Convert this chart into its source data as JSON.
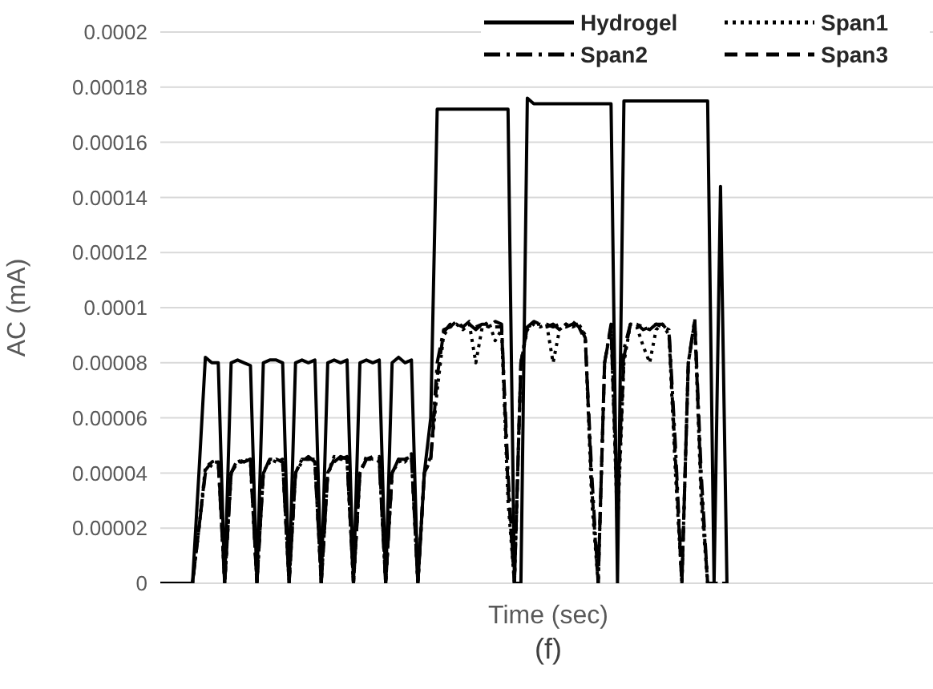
{
  "chart_data": {
    "type": "line",
    "xlabel": "Time (sec)",
    "ylabel": "AC (mA)",
    "annotations": [
      "(f)"
    ],
    "categories": [
      null,
      null,
      null,
      null,
      null,
      null,
      null,
      null,
      null,
      null,
      null,
      null,
      null,
      null,
      null,
      null,
      null,
      null,
      null,
      null,
      null,
      null,
      null,
      null,
      null,
      null,
      null,
      null,
      null,
      null,
      null,
      null,
      null,
      null,
      null,
      null,
      null,
      null,
      null,
      null,
      null,
      null,
      null,
      null,
      null,
      null,
      null,
      null,
      null,
      null,
      null,
      null,
      null,
      null,
      null,
      null,
      null,
      null,
      null,
      null,
      null,
      null,
      null,
      null,
      null,
      null,
      null,
      null,
      null,
      null,
      null,
      null,
      null,
      null,
      null,
      null,
      null,
      null,
      null,
      null,
      null,
      null,
      null,
      null,
      null,
      null,
      null,
      null,
      null,
      null,
      null,
      null,
      null,
      null,
      null,
      null,
      null,
      null,
      null,
      null,
      null,
      null,
      null,
      null,
      null,
      null,
      null,
      null,
      null,
      null,
      null,
      null,
      null,
      null,
      null,
      null,
      null,
      null,
      null,
      null,
      null
    ],
    "series": [
      {
        "name": "Hydrogel",
        "color": "#000000",
        "line_style": "solid",
        "values": [
          0,
          0,
          0,
          0,
          0,
          0,
          4e-05,
          8.2e-05,
          8e-05,
          8e-05,
          0,
          8e-05,
          8.1e-05,
          8e-05,
          7.9e-05,
          0,
          8e-05,
          8.1e-05,
          8.1e-05,
          8e-05,
          0,
          8e-05,
          8.1e-05,
          8e-05,
          8.1e-05,
          0,
          8e-05,
          8.1e-05,
          8e-05,
          8.1e-05,
          0,
          8e-05,
          8.1e-05,
          8e-05,
          8.1e-05,
          0,
          8e-05,
          8.2e-05,
          8e-05,
          8.1e-05,
          0,
          4e-05,
          6e-05,
          0.000172,
          0.000172,
          0.000172,
          0.000172,
          0.000172,
          0.000172,
          0.000172,
          0.000172,
          0.000172,
          0.000172,
          0.000172,
          0.000172,
          0,
          0,
          0.000176,
          0.000174,
          0.000174,
          0.000174,
          0.000174,
          0.000174,
          0.000174,
          0.000174,
          0.000174,
          0.000174,
          0.000174,
          0.000174,
          0.000174,
          0.000174,
          0,
          0.000175,
          0.000175,
          0.000175,
          0.000175,
          0.000175,
          0.000175,
          0.000175,
          0.000175,
          0.000175,
          0.000175,
          0.000175,
          0.000175,
          0.000175,
          0.000175,
          0,
          0.000144,
          0,
          null,
          null,
          null,
          null,
          null,
          null,
          null,
          null,
          null,
          null,
          null,
          null,
          null,
          null,
          null,
          null,
          null,
          null,
          null,
          null,
          null,
          null,
          null,
          null,
          null,
          null,
          null,
          null,
          null,
          null,
          null,
          null
        ]
      },
      {
        "name": "Span1",
        "color": "#000000",
        "line_style": "dotted",
        "values": [
          0,
          0,
          0,
          0,
          0,
          0,
          2e-05,
          4.2e-05,
          4.4e-05,
          4.4e-05,
          0,
          4e-05,
          4.4e-05,
          4.5e-05,
          4.4e-05,
          0,
          4e-05,
          4.5e-05,
          4.4e-05,
          4.5e-05,
          0,
          4e-05,
          4.5e-05,
          4.5e-05,
          4.4e-05,
          0,
          4e-05,
          4.6e-05,
          4.5e-05,
          4.5e-05,
          0,
          4e-05,
          4.6e-05,
          4.5e-05,
          4.5e-05,
          0,
          4e-05,
          4.4e-05,
          4.5e-05,
          4.6e-05,
          0,
          4e-05,
          4.6e-05,
          7e-05,
          9e-05,
          9.3e-05,
          9.4e-05,
          9.2e-05,
          9.4e-05,
          8e-05,
          9.3e-05,
          9.5e-05,
          8.8e-05,
          9.2e-05,
          3e-05,
          0,
          8e-05,
          9.2e-05,
          9.4e-05,
          9.3e-05,
          9.4e-05,
          8e-05,
          9.2e-05,
          9.4e-05,
          9.3e-05,
          9.4e-05,
          9e-05,
          3e-05,
          0,
          8e-05,
          9.3e-05,
          2e-05,
          8e-05,
          9.4e-05,
          9.3e-05,
          8.6e-05,
          8e-05,
          9.2e-05,
          9.4e-05,
          9e-05,
          4e-05,
          0,
          8e-05,
          9.5e-05,
          3e-05,
          0,
          0,
          0,
          0,
          null,
          null,
          null,
          null,
          null,
          null,
          null,
          null,
          null,
          null,
          null,
          null,
          null,
          null,
          null,
          null,
          null,
          null,
          null,
          null,
          null,
          null,
          null,
          null,
          null,
          null,
          null,
          null,
          null,
          null,
          null,
          null
        ]
      },
      {
        "name": "Span2",
        "color": "#000000",
        "line_style": "dashdot",
        "values": [
          0,
          0,
          0,
          0,
          0,
          0,
          2e-05,
          4e-05,
          4.3e-05,
          4.4e-05,
          0,
          4e-05,
          4.4e-05,
          4.4e-05,
          4.5e-05,
          0,
          4e-05,
          4.4e-05,
          4.5e-05,
          4.4e-05,
          0,
          4e-05,
          4.4e-05,
          4.6e-05,
          4.4e-05,
          0,
          4e-05,
          4.4e-05,
          4.6e-05,
          4.5e-05,
          0,
          4e-05,
          4.5e-05,
          4.6e-05,
          4.4e-05,
          0,
          4e-05,
          4.5e-05,
          4.4e-05,
          4.7e-05,
          0,
          4e-05,
          4.5e-05,
          8e-05,
          9.2e-05,
          9.3e-05,
          9.5e-05,
          9.3e-05,
          9.4e-05,
          9.2e-05,
          9.4e-05,
          9.3e-05,
          9.5e-05,
          9.4e-05,
          4e-05,
          0,
          8e-05,
          9.3e-05,
          9.4e-05,
          9.4e-05,
          9.3e-05,
          9.4e-05,
          9.2e-05,
          9.4e-05,
          9.5e-05,
          9.3e-05,
          8.8e-05,
          4e-05,
          0,
          8e-05,
          9.4e-05,
          3e-05,
          8.5e-05,
          9.4e-05,
          9.4e-05,
          9.3e-05,
          9.2e-05,
          9.4e-05,
          9.3e-05,
          9.2e-05,
          5e-05,
          0,
          8e-05,
          9.6e-05,
          4e-05,
          0,
          0,
          0,
          0,
          null,
          null,
          null,
          null,
          null,
          null,
          null,
          null,
          null,
          null,
          null,
          null,
          null,
          null,
          null,
          null,
          null,
          null,
          null,
          null,
          null,
          null,
          null,
          null,
          null,
          null,
          null,
          null,
          null,
          null,
          null,
          null
        ]
      },
      {
        "name": "Span3",
        "color": "#000000",
        "line_style": "dashed",
        "values": [
          0,
          0,
          0,
          0,
          0,
          0,
          2e-05,
          4.1e-05,
          4.4e-05,
          4.5e-05,
          0,
          4e-05,
          4.5e-05,
          4.4e-05,
          4.5e-05,
          0,
          4e-05,
          4.5e-05,
          4.5e-05,
          4.4e-05,
          0,
          4e-05,
          4.5e-05,
          4.5e-05,
          4.5e-05,
          0,
          4e-05,
          4.5e-05,
          4.5e-05,
          4.6e-05,
          0,
          4e-05,
          4.5e-05,
          4.5e-05,
          4.6e-05,
          0,
          4e-05,
          4.5e-05,
          4.5e-05,
          4.6e-05,
          0,
          4e-05,
          4.5e-05,
          7.5e-05,
          9.1e-05,
          9.4e-05,
          9.4e-05,
          9.3e-05,
          9.5e-05,
          9.3e-05,
          9.4e-05,
          9.4e-05,
          9.3e-05,
          9.3e-05,
          3.5e-05,
          0,
          8e-05,
          9.3e-05,
          9.5e-05,
          9.4e-05,
          9.4e-05,
          9.3e-05,
          9.4e-05,
          9.3e-05,
          9.4e-05,
          9.4e-05,
          8.9e-05,
          3.5e-05,
          0,
          8e-05,
          9.3e-05,
          2.5e-05,
          8.2e-05,
          9.4e-05,
          9.4e-05,
          9.2e-05,
          9.3e-05,
          9.4e-05,
          9.4e-05,
          9.1e-05,
          4.5e-05,
          0,
          8e-05,
          9.5e-05,
          3.5e-05,
          0,
          0,
          0,
          0,
          null,
          null,
          null,
          null,
          null,
          null,
          null,
          null,
          null,
          null,
          null,
          null,
          null,
          null,
          null,
          null,
          null,
          null,
          null,
          null,
          null,
          null,
          null,
          null,
          null,
          null,
          null,
          null,
          null,
          null,
          null,
          null
        ]
      }
    ],
    "ylim": [
      0,
      0.0002
    ],
    "yticks": [
      0,
      {
        "value": 2e-05,
        "label": "0.00002"
      },
      {
        "value": 4e-05,
        "label": "0.00004"
      },
      {
        "value": 6e-05,
        "label": "0.00006"
      },
      {
        "value": 8e-05,
        "label": "0.00008"
      },
      0.0001,
      0.00012,
      0.00014,
      0.00016,
      0.00018,
      0.0002
    ],
    "grid": "y",
    "legend": "top right",
    "tick_labels": "y",
    "marker": "none"
  }
}
